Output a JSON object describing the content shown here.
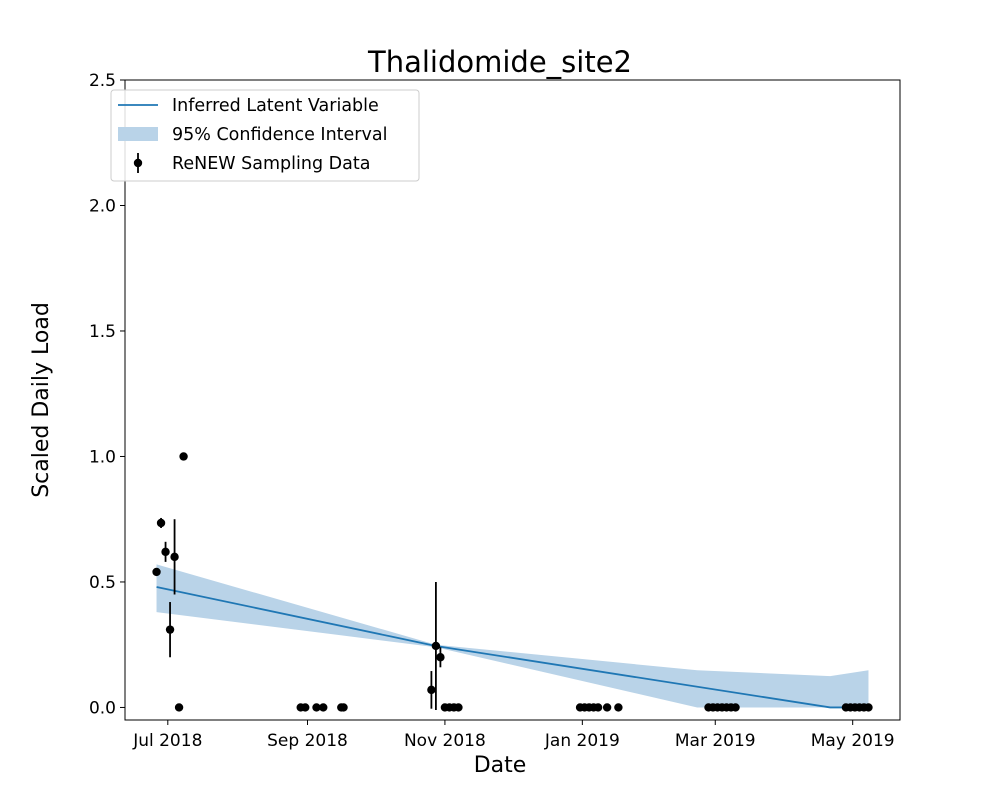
{
  "chart_data": {
    "type": "scatter",
    "title": "Thalidomide_site2",
    "xlabel": "Date",
    "ylabel": "Scaled Daily Load",
    "ylim": [
      -0.05,
      2.5
    ],
    "xlim": [
      "2018-06-12",
      "2019-05-22"
    ],
    "x_ticks": [
      {
        "date": "2018-07-01",
        "label": "Jul 2018"
      },
      {
        "date": "2018-09-01",
        "label": "Sep 2018"
      },
      {
        "date": "2018-11-01",
        "label": "Nov 2018"
      },
      {
        "date": "2019-01-01",
        "label": "Jan 2019"
      },
      {
        "date": "2019-03-01",
        "label": "Mar 2019"
      },
      {
        "date": "2019-05-01",
        "label": "May 2019"
      }
    ],
    "y_ticks": [
      {
        "value": 0,
        "label": "0.0"
      },
      {
        "value": 0.5,
        "label": "0.5"
      },
      {
        "value": 1,
        "label": "1.0"
      },
      {
        "value": 1.5,
        "label": "1.5"
      },
      {
        "value": 2,
        "label": "2.0"
      },
      {
        "value": 2.5,
        "label": "2.5"
      }
    ],
    "grid": false,
    "legend_placement": "top-left",
    "series": [
      {
        "name": "Inferred Latent Variable",
        "kind": "line",
        "color": "#1f77b4",
        "points": [
          {
            "x": "2018-06-26",
            "y": 0.48
          },
          {
            "x": "2018-10-28",
            "y": 0.245
          },
          {
            "x": "2019-04-21",
            "y": 0.0
          },
          {
            "x": "2019-05-08",
            "y": 0.0
          }
        ]
      },
      {
        "name": "95% Confidence Interval",
        "kind": "band",
        "color": "#b9d3e8",
        "points": [
          {
            "x": "2018-06-26",
            "lower": 0.38,
            "upper": 0.57
          },
          {
            "x": "2018-10-28",
            "lower": 0.24,
            "upper": 0.25
          },
          {
            "x": "2019-02-21",
            "lower": 0.0,
            "upper": 0.148
          },
          {
            "x": "2019-04-21",
            "lower": 0.0,
            "upper": 0.125
          },
          {
            "x": "2019-05-08",
            "lower": 0.0,
            "upper": 0.148
          }
        ]
      },
      {
        "name": "ReNEW Sampling Data",
        "kind": "errorbar",
        "color": "#000000",
        "points": [
          {
            "x": "2018-06-26",
            "y": 0.54,
            "err": 0.015
          },
          {
            "x": "2018-06-28",
            "y": 0.735,
            "err": 0.02
          },
          {
            "x": "2018-06-30",
            "y": 0.62,
            "err": 0.04
          },
          {
            "x": "2018-07-02",
            "y": 0.31,
            "err": 0.11
          },
          {
            "x": "2018-07-04",
            "y": 0.6,
            "err": 0.15
          },
          {
            "x": "2018-07-06",
            "y": 0.0,
            "err": 0
          },
          {
            "x": "2018-07-08",
            "y": 1.0,
            "err": 0
          },
          {
            "x": "2018-08-29",
            "y": 0.0,
            "err": 0
          },
          {
            "x": "2018-08-31",
            "y": 0.0,
            "err": 0
          },
          {
            "x": "2018-09-05",
            "y": 0.0,
            "err": 0
          },
          {
            "x": "2018-09-08",
            "y": 0.0,
            "err": 0
          },
          {
            "x": "2018-09-16",
            "y": 0.0,
            "err": 0
          },
          {
            "x": "2018-09-17",
            "y": 0.0,
            "err": 0
          },
          {
            "x": "2018-10-26",
            "y": 0.07,
            "err": 0.075
          },
          {
            "x": "2018-10-28",
            "y": 0.245,
            "err": 0.255
          },
          {
            "x": "2018-10-30",
            "y": 0.2,
            "err": 0.04
          },
          {
            "x": "2018-11-01",
            "y": 0.0,
            "err": 0
          },
          {
            "x": "2018-11-03",
            "y": 0.0,
            "err": 0
          },
          {
            "x": "2018-11-05",
            "y": 0.0,
            "err": 0
          },
          {
            "x": "2018-11-07",
            "y": 0.0,
            "err": 0
          },
          {
            "x": "2018-12-31",
            "y": 0.0,
            "err": 0
          },
          {
            "x": "2019-01-02",
            "y": 0.0,
            "err": 0
          },
          {
            "x": "2019-01-04",
            "y": 0.0,
            "err": 0
          },
          {
            "x": "2019-01-06",
            "y": 0.0,
            "err": 0
          },
          {
            "x": "2019-01-08",
            "y": 0.0,
            "err": 0
          },
          {
            "x": "2019-01-12",
            "y": 0.0,
            "err": 0
          },
          {
            "x": "2019-01-17",
            "y": 0.0,
            "err": 0
          },
          {
            "x": "2019-02-26",
            "y": 0.0,
            "err": 0
          },
          {
            "x": "2019-02-28",
            "y": 0.0,
            "err": 0
          },
          {
            "x": "2019-03-02",
            "y": 0.0,
            "err": 0
          },
          {
            "x": "2019-03-04",
            "y": 0.0,
            "err": 0
          },
          {
            "x": "2019-03-06",
            "y": 0.0,
            "err": 0
          },
          {
            "x": "2019-03-08",
            "y": 0.0,
            "err": 0
          },
          {
            "x": "2019-03-10",
            "y": 0.0,
            "err": 0
          },
          {
            "x": "2019-04-28",
            "y": 0.0,
            "err": 0
          },
          {
            "x": "2019-04-30",
            "y": 0.0,
            "err": 0
          },
          {
            "x": "2019-05-02",
            "y": 0.0,
            "err": 0
          },
          {
            "x": "2019-05-04",
            "y": 0.0,
            "err": 0
          },
          {
            "x": "2019-05-06",
            "y": 0.0,
            "err": 0
          },
          {
            "x": "2019-05-08",
            "y": 0.0,
            "err": 0
          }
        ]
      }
    ]
  }
}
